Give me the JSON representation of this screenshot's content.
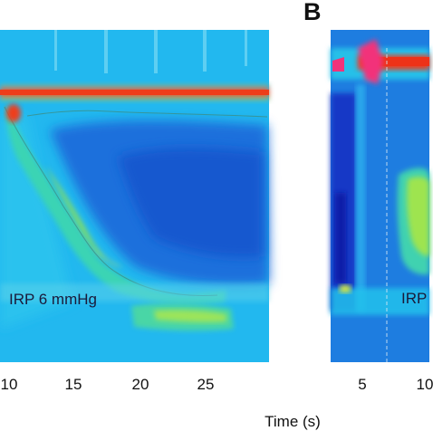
{
  "panel_b_label": "B",
  "panel_a": {
    "annotation": "IRP 6 mmHg",
    "x_ticks": [
      "10",
      "15",
      "20",
      "25"
    ]
  },
  "panel_b": {
    "annotation": "IRP",
    "x_ticks": [
      "5",
      "10"
    ]
  },
  "x_axis_title": "Time (s)",
  "colorscale": {
    "background": "#1fb4ee",
    "low": "#1464d6",
    "mid": "#20d8b8",
    "high": "#8ee050",
    "peak": "#ee3a18",
    "max": "#f2337a"
  }
}
